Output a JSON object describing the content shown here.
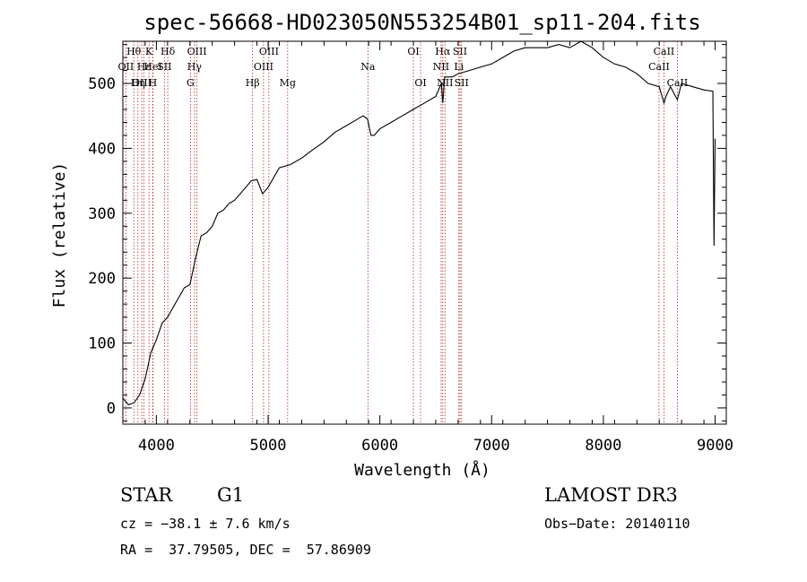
{
  "chart_data": {
    "type": "line",
    "title": "spec-56668-HD023050N553254B01_sp11-204.fits",
    "xlabel": "Wavelength (Å)",
    "ylabel": "Flux (relative)",
    "xlim": [
      3700,
      9100
    ],
    "ylim": [
      -25,
      565
    ],
    "xticks": [
      4000,
      5000,
      6000,
      7000,
      8000,
      9000
    ],
    "yticks": [
      0,
      100,
      200,
      300,
      400,
      500
    ],
    "grid": false,
    "series": [
      {
        "x": [
          3700,
          3750,
          3800,
          3850,
          3900,
          3950,
          4000,
          4050,
          4100,
          4150,
          4200,
          4250,
          4300,
          4350,
          4400,
          4450,
          4500,
          4550,
          4600,
          4650,
          4700,
          4750,
          4800,
          4850,
          4900,
          4950,
          5000,
          5100,
          5200,
          5300,
          5400,
          5500,
          5600,
          5700,
          5800,
          5850,
          5890,
          5920,
          5950,
          6000,
          6100,
          6200,
          6300,
          6400,
          6500,
          6550,
          6563,
          6580,
          6650,
          6700,
          6800,
          6900,
          7000,
          7100,
          7200,
          7300,
          7400,
          7500,
          7600,
          7700,
          7800,
          7850,
          7900,
          8000,
          8100,
          8200,
          8300,
          8400,
          8500,
          8542,
          8560,
          8600,
          8662,
          8700,
          8800,
          8900,
          8980,
          8990,
          9000
        ],
        "y": [
          15,
          5,
          8,
          20,
          45,
          85,
          105,
          130,
          140,
          155,
          170,
          185,
          190,
          230,
          265,
          270,
          280,
          300,
          305,
          315,
          320,
          330,
          340,
          350,
          352,
          330,
          340,
          370,
          375,
          385,
          398,
          410,
          425,
          435,
          445,
          450,
          445,
          420,
          420,
          430,
          440,
          450,
          460,
          470,
          480,
          500,
          470,
          510,
          510,
          515,
          520,
          525,
          530,
          540,
          550,
          555,
          555,
          555,
          560,
          555,
          565,
          560,
          555,
          540,
          530,
          525,
          515,
          500,
          495,
          470,
          480,
          495,
          475,
          500,
          495,
          490,
          488,
          250,
          415
        ]
      }
    ],
    "line_markers": [
      {
        "label": "Hθ",
        "wave": 3798,
        "row": 0
      },
      {
        "label": "OII",
        "wave": 3727,
        "row": 1
      },
      {
        "label": "OIII",
        "wave": 3869,
        "row": 2
      },
      {
        "label": "Hε",
        "wave": 3889,
        "row": 1
      },
      {
        "label": "Hη",
        "wave": 3835,
        "row": 2
      },
      {
        "label": "K",
        "wave": 3934,
        "row": 0
      },
      {
        "label": "HeI",
        "wave": 3970,
        "row": 1
      },
      {
        "label": "H",
        "wave": 3968,
        "row": 2
      },
      {
        "label": "Hδ",
        "wave": 4102,
        "row": 0
      },
      {
        "label": "SII",
        "wave": 4072,
        "row": 1
      },
      {
        "label": "OIII",
        "wave": 4363,
        "row": 0
      },
      {
        "label": "Hγ",
        "wave": 4341,
        "row": 1
      },
      {
        "label": "G",
        "wave": 4305,
        "row": 2
      },
      {
        "label": "Hβ",
        "wave": 4861,
        "row": 2
      },
      {
        "label": "OIII",
        "wave": 5007,
        "row": 0
      },
      {
        "label": "OIII",
        "wave": 4959,
        "row": 1
      },
      {
        "label": "Mg",
        "wave": 5175,
        "row": 2
      },
      {
        "label": "Na",
        "wave": 5893,
        "row": 1
      },
      {
        "label": "OI",
        "wave": 6300,
        "row": 0
      },
      {
        "label": "OI",
        "wave": 6364,
        "row": 2
      },
      {
        "label": "Hα",
        "wave": 6563,
        "row": 0
      },
      {
        "label": "SII",
        "wave": 6717,
        "row": 0
      },
      {
        "label": "NII",
        "wave": 6548,
        "row": 1
      },
      {
        "label": "Li",
        "wave": 6707,
        "row": 1
      },
      {
        "label": "NII",
        "wave": 6583,
        "row": 2
      },
      {
        "label": "SII",
        "wave": 6731,
        "row": 2
      },
      {
        "label": "CaII",
        "wave": 8542,
        "row": 0
      },
      {
        "label": "CaII",
        "wave": 8498,
        "row": 1
      },
      {
        "label": "CaII",
        "wave": 8662,
        "row": 2
      }
    ]
  },
  "info": {
    "object_class": "STAR",
    "subclass": "G1",
    "survey": "LAMOST DR3",
    "cz": "cz = −38.1 ± 7.6 km/s",
    "obs_date": "Obs−Date: 20140110",
    "coords": "RA =  37.79505, DEC =  57.86909"
  }
}
